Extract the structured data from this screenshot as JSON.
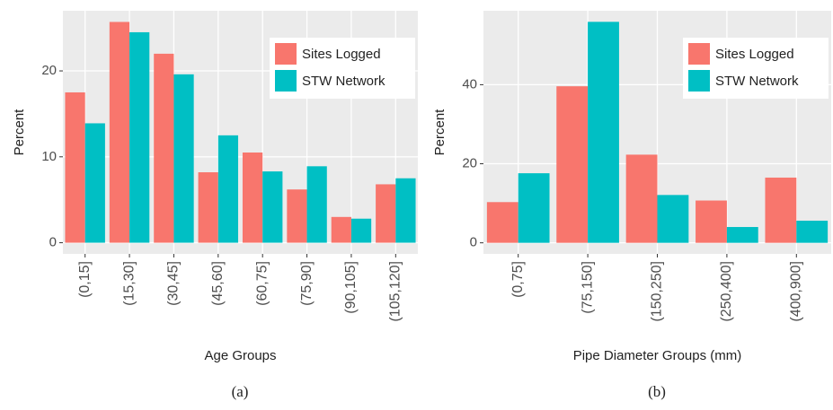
{
  "chart_data": [
    {
      "type": "bar",
      "caption": "(a)",
      "xlabel": "Age Groups",
      "ylabel": "Percent",
      "categories": [
        "(0,15]",
        "(15,30]",
        "(30,45]",
        "(45,60]",
        "(60,75]",
        "(75,90]",
        "(90,105]",
        "(105,120]"
      ],
      "series": [
        {
          "name": "Sites Logged",
          "color": "#f8766d",
          "values": [
            17.5,
            25.7,
            22.0,
            8.2,
            10.5,
            6.2,
            3.0,
            6.8
          ]
        },
        {
          "name": "STW Network",
          "color": "#00bfc4",
          "values": [
            13.9,
            24.5,
            19.6,
            12.5,
            8.3,
            8.9,
            2.8,
            7.5
          ]
        }
      ],
      "ylim": [
        -1.3,
        27.0
      ],
      "yticks": [
        0,
        10,
        20
      ],
      "grid": true,
      "legend": "top-right"
    },
    {
      "type": "bar",
      "caption": "(b)",
      "xlabel": "Pipe Diameter Groups (mm)",
      "ylabel": "Percent",
      "categories": [
        "(0,75]",
        "(75,150]",
        "(150,250]",
        "(250,400]",
        "(400,900]"
      ],
      "series": [
        {
          "name": "Sites Logged",
          "color": "#f8766d",
          "values": [
            10.3,
            39.6,
            22.3,
            10.7,
            16.5
          ]
        },
        {
          "name": "STW Network",
          "color": "#00bfc4",
          "values": [
            17.6,
            55.9,
            12.1,
            4.0,
            5.6
          ]
        }
      ],
      "ylim": [
        -2.8,
        58.7
      ],
      "yticks": [
        0,
        20,
        40
      ],
      "grid": true,
      "legend": "top-right"
    }
  ]
}
